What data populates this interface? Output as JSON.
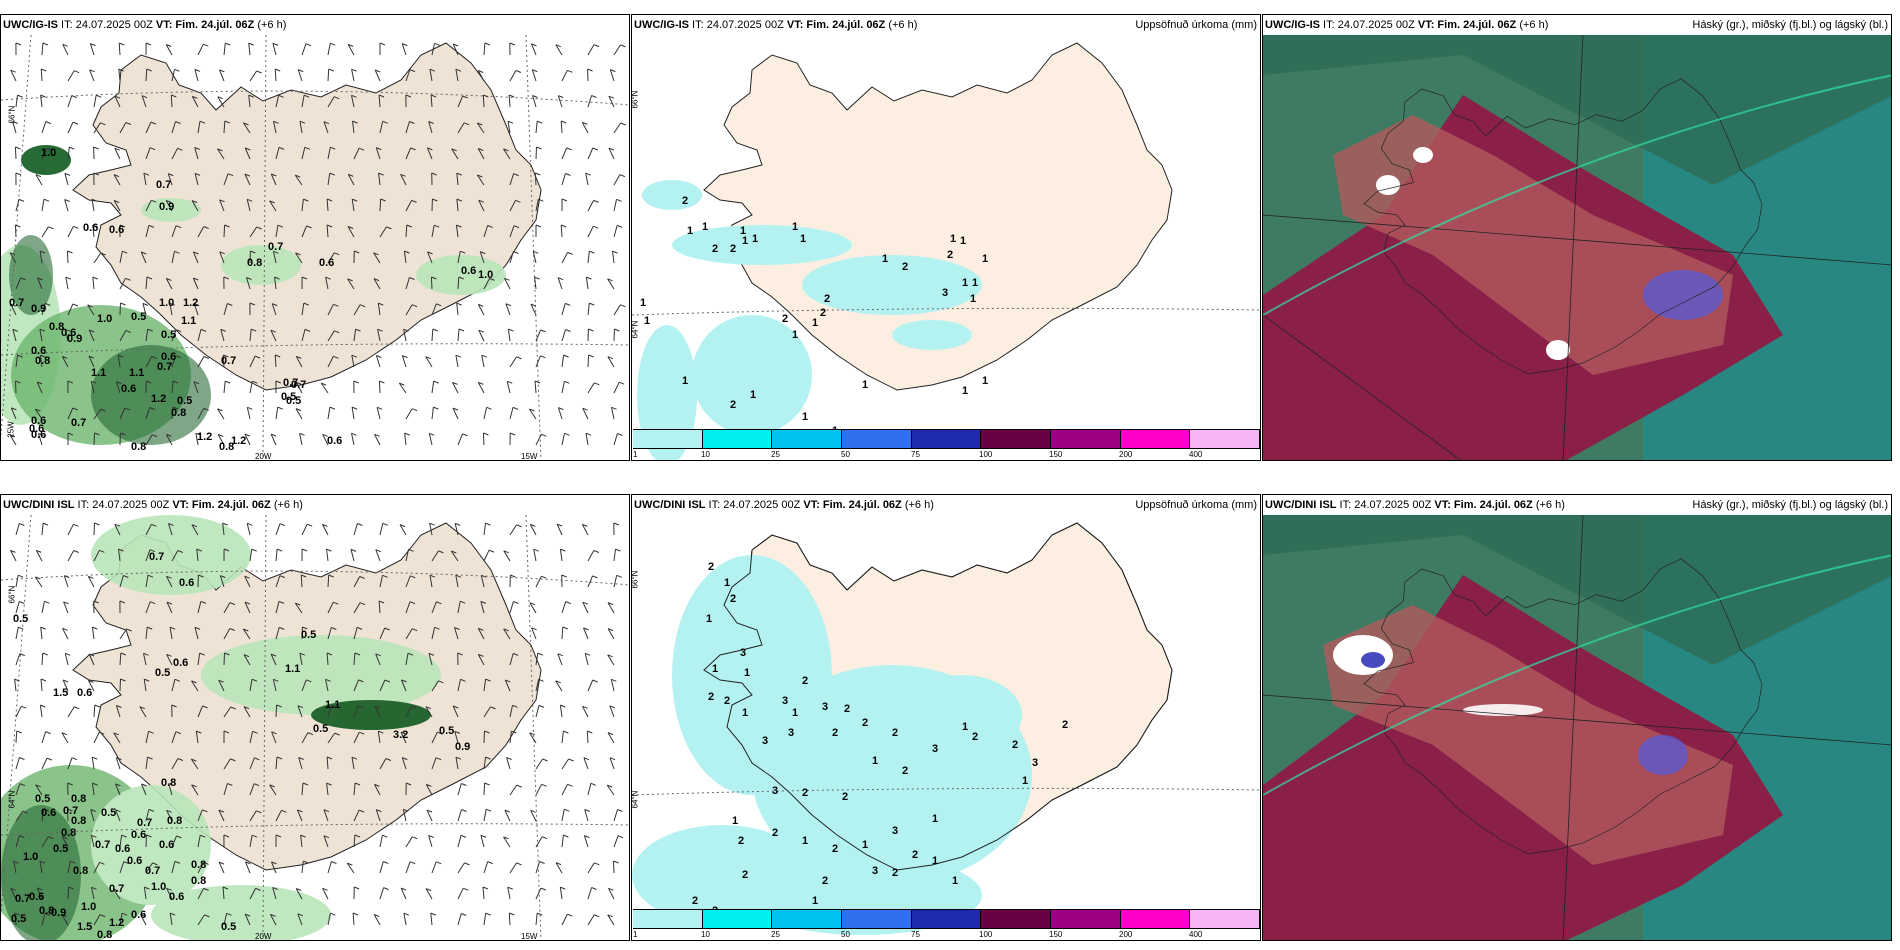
{
  "colors": {
    "land": "#efe3d6",
    "precip_land": "#fcefe2",
    "precip_shade": "#b4f2f2",
    "wind_green_light": "#b9e6b9",
    "wind_green_mid": "#5dae5d",
    "wind_green_dark": "#0f5a1f",
    "cloud_base": "#8a1f48",
    "cloud_mid": "#b05a5c",
    "cloud_high": "#3f7a62",
    "cloud_teal": "#1f8f8f",
    "legend": [
      "#b4f2f2",
      "#00f0f0",
      "#00c2f0",
      "#3070f0",
      "#1f2ab0",
      "#6a0044",
      "#a00083",
      "#ff00c8",
      "#f5b4f5"
    ]
  },
  "top": {
    "left_title_model": "UWC/IG-IS",
    "left_title_rest": " IT: 24.07.2025 00Z ",
    "left_title_vt": "VT: Fim. 24.júl. 06Z",
    "left_title_lead": " (+6 h)",
    "mid_title_model": "UWC/IG-IS",
    "mid_title_rest": " IT: 24.07.2025 00Z ",
    "mid_title_vt": "VT: Fim. 24.júl. 06Z",
    "mid_title_lead": " (+6 h)",
    "mid_right": "Uppsöfnuð úrkoma (mm)",
    "right_title_model": "UWC/IG-IS",
    "right_title_rest": " IT: 24.07.2025 00Z ",
    "right_title_vt": "VT: Fim. 24.júl. 06Z",
    "right_title_lead": " (+6 h)",
    "right_right": "Háský (gr.), miðský (fj.bl.) og lágský (bl.)",
    "wind_labels": [
      "1.0",
      "0.7",
      "0.9",
      "0.6",
      "0.6",
      "0.8",
      "0.7",
      "0.6",
      "0.6",
      "1.0",
      "0.7",
      "0.9",
      "1.0",
      "0.5",
      "1.0",
      "1.2",
      "1.1",
      "0.5",
      "0.8",
      "0.6",
      "0.9",
      "0.6",
      "0.8",
      "0.7",
      "0.6",
      "0.7",
      "1.1",
      "1.1",
      "0.7",
      "0.7",
      "0.6",
      "1.2",
      "0.5",
      "0.8",
      "0.6",
      "0.7",
      "0.5",
      "0.5",
      "1.2",
      "0.8",
      "1.2",
      "0.6",
      "0.6",
      "0.6",
      "0.8"
    ],
    "precip_labels": [
      "2",
      "1",
      "1",
      "1",
      "1",
      "2",
      "2",
      "1",
      "1",
      "1",
      "1",
      "2",
      "2",
      "1",
      "1",
      "1",
      "3",
      "1",
      "1",
      "1",
      "2",
      "2",
      "1",
      "2",
      "1",
      "1",
      "1",
      "1",
      "2",
      "1",
      "1",
      "1",
      "1",
      "1",
      "1"
    ]
  },
  "bottom": {
    "left_title_model": "UWC/DINI ISL",
    "left_title_rest": " IT: 24.07.2025 00Z ",
    "left_title_vt": "VT: Fim. 24.júl. 06Z",
    "left_title_lead": " (+6 h)",
    "mid_title_model": "UWC/DINI ISL",
    "mid_title_rest": " IT: 24.07.2025 00Z ",
    "mid_title_vt": "VT: Fim. 24.júl. 06Z",
    "mid_title_lead": " (+6 h)",
    "mid_right": "Uppsöfnuð úrkoma (mm)",
    "right_title_model": "UWC/DINI ISL",
    "right_title_rest": " IT: 24.07.2025 00Z ",
    "right_title_vt": "VT: Fim. 24.júl. 06Z",
    "right_title_lead": " (+6 h)",
    "right_right": "Háský (gr.), miðský (fj.bl.) og lágský (bl.)",
    "wind_labels": [
      "0.7",
      "0.6",
      "0.5",
      "0.5",
      "0.6",
      "1.1",
      "0.5",
      "1.5",
      "0.6",
      "1.1",
      "0.5",
      "3.2",
      "0.5",
      "0.9",
      "0.8",
      "0.5",
      "0.8",
      "0.7",
      "0.6",
      "0.8",
      "0.5",
      "0.7",
      "0.6",
      "0.8",
      "0.6",
      "0.7",
      "0.6",
      "0.6",
      "0.7",
      "0.8",
      "1.0",
      "0.8",
      "0.5",
      "0.8",
      "1.0",
      "0.6",
      "0.6",
      "0.8",
      "0.7",
      "0.6",
      "0.8",
      "0.9",
      "0.7",
      "1.0",
      "1.2",
      "0.8",
      "1.5",
      "0.5",
      "0.5"
    ],
    "precip_labels": [
      "2",
      "1",
      "2",
      "1",
      "3",
      "1",
      "1",
      "2",
      "2",
      "1",
      "3",
      "2",
      "1",
      "3",
      "2",
      "2",
      "3",
      "3",
      "2",
      "1",
      "2",
      "2",
      "3",
      "1",
      "2",
      "2",
      "1",
      "3",
      "2",
      "2",
      "3",
      "2",
      "1",
      "2",
      "2",
      "1",
      "2",
      "1",
      "3",
      "2",
      "1",
      "2",
      "3",
      "2",
      "1",
      "1",
      "1",
      "2",
      "2",
      "2"
    ]
  },
  "axis_ticks": {
    "lat_66": "66°N",
    "lat_64": "64°N",
    "lon_25": "25W",
    "lon_20": "20W",
    "lon_15": "15W"
  },
  "legend_ticks": [
    "1",
    "10",
    "25",
    "50",
    "75",
    "100",
    "150",
    "200",
    "400"
  ]
}
